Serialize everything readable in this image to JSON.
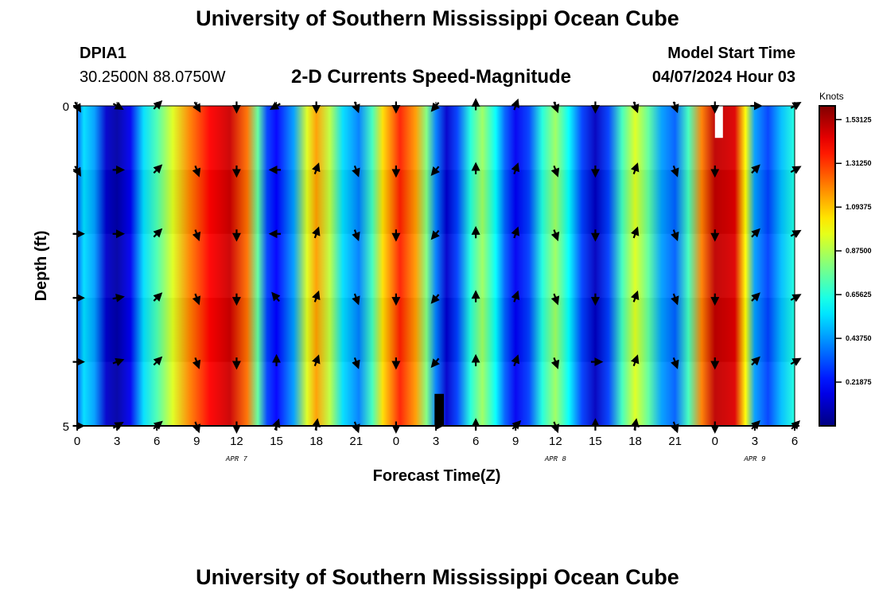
{
  "header": {
    "title": "University of Southern Mississippi Ocean Cube",
    "station_id": "DPIA1",
    "coordinates": "30.2500N  88.0750W",
    "plot_title": "2-D Currents Speed-Magnitude",
    "model_start_label": "Model Start Time",
    "model_start_value": "04/07/2024 Hour 03"
  },
  "footer": {
    "title": "University of Southern Mississippi Ocean Cube"
  },
  "chart_data": {
    "type": "heatmap",
    "title": "2-D Currents Speed-Magnitude",
    "xlabel": "Forecast Time(Z)",
    "ylabel": "Depth (ft)",
    "x_range_hours": [
      0,
      54
    ],
    "y_range_ft": [
      0,
      5
    ],
    "y_ticks": [
      "0",
      "5"
    ],
    "x_tick_labels": [
      "0",
      "3",
      "6",
      "9",
      "12",
      "15",
      "18",
      "21",
      "0",
      "3",
      "6",
      "9",
      "12",
      "15",
      "18",
      "21",
      "0",
      "3",
      "6"
    ],
    "date_labels": [
      {
        "label": "APR 7",
        "hour": 12
      },
      {
        "label": "APR 8",
        "hour": 36
      },
      {
        "label": "APR 9",
        "hour": 51
      }
    ],
    "colorbar": {
      "unit": "Knots",
      "min": 0,
      "max": 1.6,
      "tick_labels": [
        "0.21875",
        "0.43750",
        "0.65625",
        "0.87500",
        "1.09375",
        "1.31250",
        "1.53125"
      ]
    },
    "arrow_rows_depth_ft": [
      0,
      1,
      2,
      3,
      4,
      5
    ],
    "speed_profile_knots": [
      {
        "hour": 0,
        "speed": 0.35
      },
      {
        "hour": 0.5,
        "speed": 0.55
      },
      {
        "hour": 1.3,
        "speed": 0.45
      },
      {
        "hour": 2.2,
        "speed": 0.12
      },
      {
        "hour": 3,
        "speed": 0.06
      },
      {
        "hour": 4,
        "speed": 0.18
      },
      {
        "hour": 5,
        "speed": 0.55
      },
      {
        "hour": 6,
        "speed": 0.72
      },
      {
        "hour": 7.2,
        "speed": 0.95
      },
      {
        "hour": 8.5,
        "speed": 1.2
      },
      {
        "hour": 10,
        "speed": 1.4
      },
      {
        "hour": 11.5,
        "speed": 1.48
      },
      {
        "hour": 12.8,
        "speed": 1.22
      },
      {
        "hour": 13.6,
        "speed": 0.75
      },
      {
        "hour": 14.3,
        "speed": 0.3
      },
      {
        "hour": 15,
        "speed": 0.2
      },
      {
        "hour": 16.3,
        "speed": 0.45
      },
      {
        "hour": 17.3,
        "speed": 0.95
      },
      {
        "hour": 18,
        "speed": 1.15
      },
      {
        "hour": 19,
        "speed": 0.9
      },
      {
        "hour": 20,
        "speed": 0.55
      },
      {
        "hour": 21.2,
        "speed": 0.4
      },
      {
        "hour": 22.2,
        "speed": 0.7
      },
      {
        "hour": 23,
        "speed": 1.05
      },
      {
        "hour": 24.3,
        "speed": 1.35
      },
      {
        "hour": 25.5,
        "speed": 1.15
      },
      {
        "hour": 26.3,
        "speed": 0.8
      },
      {
        "hour": 27,
        "speed": 0.4
      },
      {
        "hour": 27.8,
        "speed": 0.12
      },
      {
        "hour": 28.6,
        "speed": 0.3
      },
      {
        "hour": 29.6,
        "speed": 0.65
      },
      {
        "hour": 30.5,
        "speed": 0.85
      },
      {
        "hour": 31.5,
        "speed": 0.6
      },
      {
        "hour": 32.2,
        "speed": 0.35
      },
      {
        "hour": 33,
        "speed": 0.18
      },
      {
        "hour": 34,
        "speed": 0.3
      },
      {
        "hour": 35,
        "speed": 0.65
      },
      {
        "hour": 36,
        "speed": 0.85
      },
      {
        "hour": 37,
        "speed": 0.6
      },
      {
        "hour": 38,
        "speed": 0.3
      },
      {
        "hour": 39,
        "speed": 0.1
      },
      {
        "hour": 40,
        "speed": 0.3
      },
      {
        "hour": 41,
        "speed": 0.7
      },
      {
        "hour": 42,
        "speed": 0.95
      },
      {
        "hour": 43,
        "speed": 0.75
      },
      {
        "hour": 44,
        "speed": 0.45
      },
      {
        "hour": 45,
        "speed": 0.35
      },
      {
        "hour": 46,
        "speed": 0.7
      },
      {
        "hour": 47,
        "speed": 1.2
      },
      {
        "hour": 48,
        "speed": 1.5
      },
      {
        "hour": 49.5,
        "speed": 1.45
      },
      {
        "hour": 50.3,
        "speed": 1.0
      },
      {
        "hour": 51,
        "speed": 0.45
      },
      {
        "hour": 52,
        "speed": 0.3
      },
      {
        "hour": 53,
        "speed": 0.5
      },
      {
        "hour": 54,
        "speed": 0.65
      }
    ],
    "direction_vectors": [
      {
        "hour": 0,
        "angles_deg": [
          150,
          150,
          90,
          90,
          90,
          90
        ]
      },
      {
        "hour": 3,
        "angles_deg": [
          120,
          90,
          90,
          80,
          70,
          60
        ]
      },
      {
        "hour": 6,
        "angles_deg": [
          45,
          45,
          45,
          45,
          45,
          50
        ]
      },
      {
        "hour": 9,
        "angles_deg": [
          150,
          160,
          160,
          160,
          160,
          160
        ]
      },
      {
        "hour": 12,
        "angles_deg": [
          180,
          180,
          180,
          180,
          180,
          180
        ]
      },
      {
        "hour": 15,
        "angles_deg": [
          240,
          270,
          270,
          320,
          0,
          20
        ]
      },
      {
        "hour": 18,
        "angles_deg": [
          180,
          20,
          20,
          20,
          20,
          10
        ]
      },
      {
        "hour": 21,
        "angles_deg": [
          160,
          160,
          160,
          160,
          160,
          160
        ]
      },
      {
        "hour": 24,
        "angles_deg": [
          180,
          180,
          180,
          180,
          180,
          180
        ]
      },
      {
        "hour": 27,
        "angles_deg": [
          220,
          220,
          220,
          220,
          220,
          90
        ]
      },
      {
        "hour": 30,
        "angles_deg": [
          0,
          0,
          0,
          0,
          0,
          0
        ]
      },
      {
        "hour": 33,
        "angles_deg": [
          20,
          20,
          20,
          20,
          20,
          45
        ]
      },
      {
        "hour": 36,
        "angles_deg": [
          160,
          160,
          160,
          160,
          160,
          160
        ]
      },
      {
        "hour": 39,
        "angles_deg": [
          180,
          180,
          180,
          180,
          90,
          0
        ]
      },
      {
        "hour": 42,
        "angles_deg": [
          160,
          20,
          20,
          20,
          20,
          10
        ]
      },
      {
        "hour": 45,
        "angles_deg": [
          160,
          160,
          160,
          160,
          160,
          160
        ]
      },
      {
        "hour": 48,
        "angles_deg": [
          180,
          180,
          180,
          180,
          180,
          180
        ]
      },
      {
        "hour": 51,
        "angles_deg": [
          90,
          45,
          45,
          45,
          45,
          45
        ]
      },
      {
        "hour": 54,
        "angles_deg": [
          60,
          60,
          60,
          60,
          60,
          45
        ]
      }
    ],
    "gaps": [
      {
        "hour_start": 48,
        "hour_end": 48.6,
        "depth_start_ft": 0,
        "depth_end_ft": 0.5,
        "color": "#ffffff"
      },
      {
        "hour_start": 26.9,
        "hour_end": 27.6,
        "depth_start_ft": 4.5,
        "depth_end_ft": 5,
        "color": "#000000"
      }
    ]
  }
}
